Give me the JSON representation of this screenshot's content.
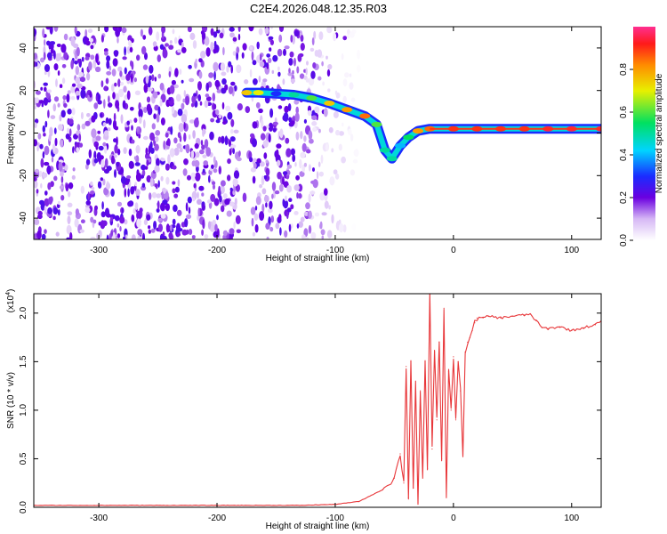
{
  "figure_title": "C2E4.2026.048.12.35.R03",
  "chart_data": [
    {
      "type": "heatmap",
      "xlabel": "Height of straight line (km)",
      "ylabel": "Frequency (Hz)",
      "xlim": [
        -355,
        125
      ],
      "ylim": [
        -50,
        50
      ],
      "x_ticks": [
        -300,
        -200,
        -100,
        0,
        100
      ],
      "y_ticks": [
        -40,
        -20,
        0,
        20,
        40
      ],
      "grid": false,
      "colorbar": {
        "label": "Normalized spectral amplitude",
        "range": [
          0,
          1
        ],
        "ticks": [
          0.0,
          0.2,
          0.4,
          0.6,
          0.8
        ],
        "colormap": "rainbow (white → violet → blue → cyan → green → yellow → red)"
      },
      "noise_region_x": [
        -355,
        -110
      ],
      "trace": {
        "x": [
          -175,
          -165,
          -150,
          -135,
          -120,
          -105,
          -90,
          -75,
          -65,
          -58,
          -52,
          -45,
          -38,
          -30,
          -20,
          0,
          20,
          40,
          60,
          80,
          100,
          125
        ],
        "freq": [
          19,
          19,
          18.5,
          18,
          16.5,
          14,
          11,
          8,
          4,
          -8,
          -12,
          -6,
          -2,
          1,
          2,
          2,
          2,
          2,
          2,
          2,
          2,
          2
        ],
        "amplitude": [
          0.75,
          0.7,
          0.3,
          0.5,
          0.6,
          0.75,
          0.8,
          0.85,
          0.6,
          0.5,
          0.5,
          0.4,
          0.55,
          0.8,
          0.85,
          0.9,
          0.9,
          0.9,
          0.9,
          0.95,
          0.95,
          0.95
        ]
      }
    },
    {
      "type": "line",
      "xlabel": "Height of straight line (km)",
      "ylabel": "SNR (10 * v/v)",
      "y_multiplier": "(x10",
      "y_multiplier_exp": "4",
      "y_multiplier_close": ")",
      "xlim": [
        -355,
        125
      ],
      "ylim": [
        0,
        2.2
      ],
      "x_ticks": [
        -300,
        -200,
        -100,
        0,
        100
      ],
      "y_ticks": [
        0.0,
        0.5,
        1.0,
        1.5,
        2.0
      ],
      "y_tick_labels": [
        "0.0",
        "0.5",
        "1.0",
        "1.5",
        "2.0"
      ],
      "grid": false,
      "series": [
        {
          "color": "#e8373a",
          "x": [
            -355,
            -200,
            -130,
            -100,
            -80,
            -60,
            -50,
            -45,
            -42,
            -40,
            -38,
            -36,
            -34,
            -32,
            -30,
            -28,
            -26,
            -24,
            -22,
            -20,
            -18,
            -16,
            -14,
            -12,
            -10,
            -8,
            -6,
            -4,
            -2,
            0,
            2,
            4,
            6,
            8,
            10,
            12,
            14,
            16,
            18,
            20,
            25,
            30,
            40,
            50,
            60,
            65,
            70,
            75,
            80,
            90,
            100,
            110,
            120,
            125
          ],
          "y": [
            0.02,
            0.02,
            0.02,
            0.03,
            0.06,
            0.18,
            0.3,
            0.55,
            0.25,
            1.45,
            0.1,
            1.5,
            0.2,
            1.3,
            0.05,
            1.2,
            0.3,
            1.5,
            0.4,
            2.2,
            0.6,
            1.6,
            0.9,
            1.7,
            0.5,
            2.05,
            0.1,
            1.4,
            1.0,
            1.55,
            0.9,
            1.5,
            1.2,
            0.55,
            1.6,
            1.7,
            1.75,
            1.82,
            1.9,
            1.95,
            1.95,
            1.97,
            1.95,
            1.97,
            1.98,
            1.99,
            1.92,
            1.85,
            1.84,
            1.86,
            1.82,
            1.85,
            1.88,
            1.92
          ]
        }
      ]
    }
  ]
}
